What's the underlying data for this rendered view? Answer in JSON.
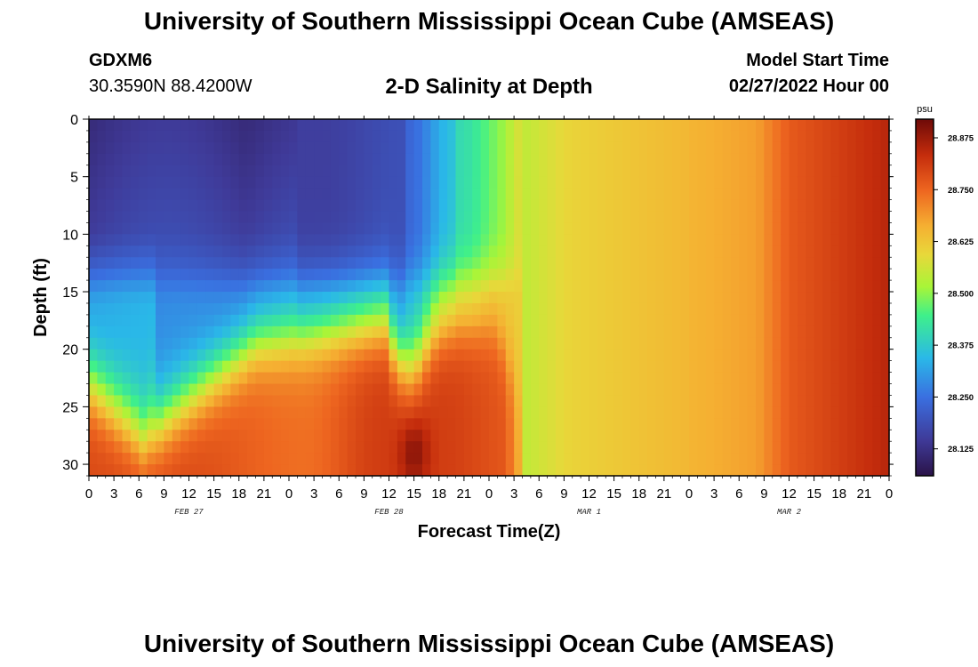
{
  "header": {
    "title": "University of Southern Mississippi Ocean Cube (AMSEAS)",
    "station_id": "GDXM6",
    "station_coords": "30.3590N  88.4200W",
    "plot_title": "2-D Salinity at Depth",
    "start_label": "Model Start Time",
    "start_value": "02/27/2022 Hour 00"
  },
  "footer": {
    "title": "University of Southern Mississippi Ocean Cube (AMSEAS)"
  },
  "chart_data": {
    "type": "heatmap",
    "title": "2-D Salinity at Depth",
    "xlabel": "Forecast Time(Z)",
    "ylabel": "Depth (ft)",
    "x_start_hour": 0,
    "x_end_hour": 96,
    "x_tick_step_hours": 3,
    "x_tick_labels": [
      "0",
      "3",
      "6",
      "9",
      "12",
      "15",
      "18",
      "21",
      "0",
      "3",
      "6",
      "9",
      "12",
      "15",
      "18",
      "21",
      "0",
      "3",
      "6",
      "9",
      "12",
      "15",
      "18",
      "21",
      "0",
      "3",
      "6",
      "9",
      "12",
      "15",
      "18",
      "21",
      "0"
    ],
    "date_labels": [
      {
        "hour": 12,
        "label": "FEB 27"
      },
      {
        "hour": 36,
        "label": "FEB 28"
      },
      {
        "hour": 60,
        "label": "MAR 1"
      },
      {
        "hour": 84,
        "label": "MAR 2"
      }
    ],
    "ylim": [
      0,
      31
    ],
    "y_ticks": [
      0,
      5,
      10,
      15,
      20,
      25,
      30
    ],
    "y_tick_labels": [
      "0",
      "5",
      "10",
      "15",
      "20",
      "25",
      "30"
    ],
    "colorbar": {
      "unit": "psu",
      "min": 28.06,
      "max": 28.92,
      "ticks": [
        28.125,
        28.25,
        28.375,
        28.5,
        28.625,
        28.75,
        28.875
      ],
      "tick_labels": [
        "28.125",
        "28.250",
        "28.375",
        "28.500",
        "28.625",
        "28.750",
        "28.875"
      ]
    },
    "colors": {
      "c0": "#2a1348",
      "c1": "#3f3a98",
      "c2": "#3a6fe0",
      "c3": "#2ab8e8",
      "c4": "#3ff08a",
      "c5": "#a8f538",
      "c6": "#e8d83a",
      "c7": "#f5b032",
      "c8": "#ee6620",
      "c9": "#c42c0c",
      "c10": "#6e0a08"
    }
  }
}
